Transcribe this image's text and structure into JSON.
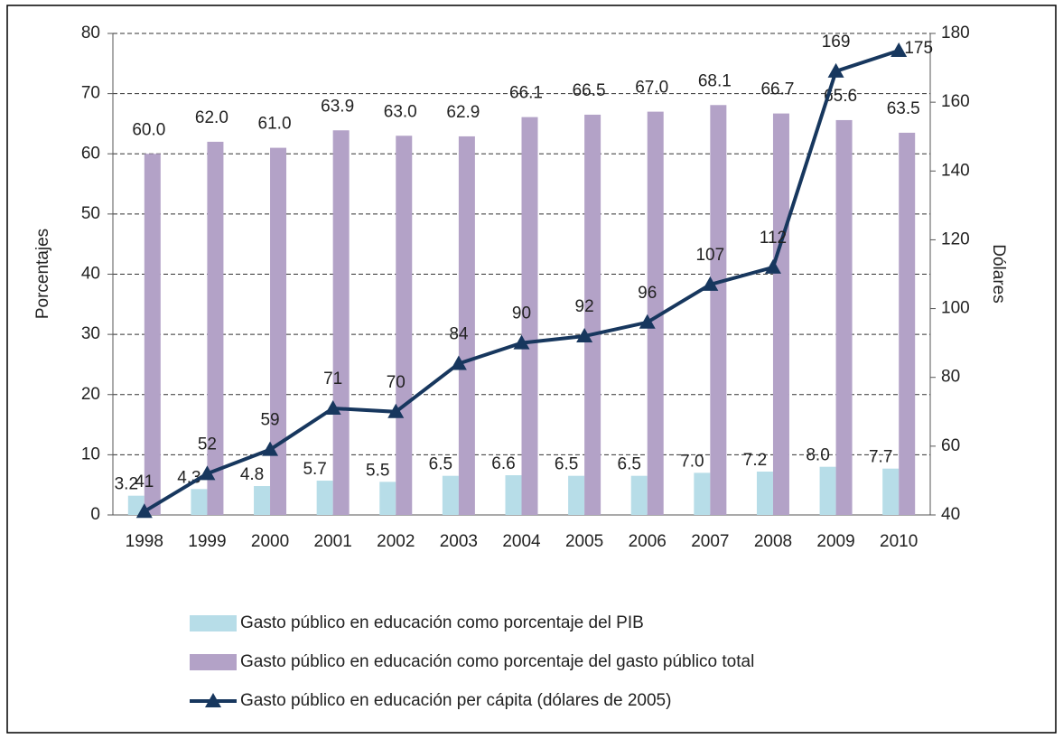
{
  "chart_data": {
    "type": "bar_line",
    "categories": [
      "1998",
      "1999",
      "2000",
      "2001",
      "2002",
      "2003",
      "2004",
      "2005",
      "2006",
      "2007",
      "2008",
      "2009",
      "2010"
    ],
    "series": [
      {
        "name": "Gasto público en educación como porcentaje del PIB",
        "type": "bar",
        "color": "#b7dde8",
        "values": [
          3.2,
          4.3,
          4.8,
          5.7,
          5.5,
          6.5,
          6.6,
          6.5,
          6.5,
          7.0,
          7.2,
          8.0,
          7.7
        ],
        "value_labels": [
          "3.2",
          "4.3",
          "4.8",
          "5.7",
          "5.5",
          "6.5",
          "6.6",
          "6.5",
          "6.5",
          "7.0",
          "7.2",
          "8.0",
          "7.7"
        ]
      },
      {
        "name": "Gasto público en educación como porcentaje del gasto público total",
        "type": "bar",
        "color": "#b3a2c7",
        "values": [
          60.0,
          62.0,
          61.0,
          63.9,
          63.0,
          62.9,
          66.1,
          66.5,
          67.0,
          68.1,
          66.7,
          65.6,
          63.5
        ],
        "value_labels": [
          "60.0",
          "62.0",
          "61.0",
          "63.9",
          "63.0",
          "62.9",
          "66.1",
          "66.5",
          "67.0",
          "68.1",
          "66.7",
          "65.6",
          "63.5"
        ]
      },
      {
        "name": "Gasto público en educación per cápita (dólares de 2005)",
        "type": "line",
        "axis": "y2",
        "color": "#17375e",
        "values": [
          41,
          52,
          59,
          71,
          70,
          84,
          90,
          92,
          96,
          107,
          112,
          169,
          175
        ]
      }
    ],
    "ylabel": "Porcentajes",
    "y2label": "Dólares",
    "ylim": [
      0,
      80
    ],
    "yticks": [
      0,
      10,
      20,
      30,
      40,
      50,
      60,
      70,
      80
    ],
    "y2lim": [
      40,
      180
    ],
    "y2ticks": [
      40,
      60,
      80,
      100,
      120,
      140,
      160,
      180
    ],
    "grid": true,
    "legend": "bottom"
  }
}
